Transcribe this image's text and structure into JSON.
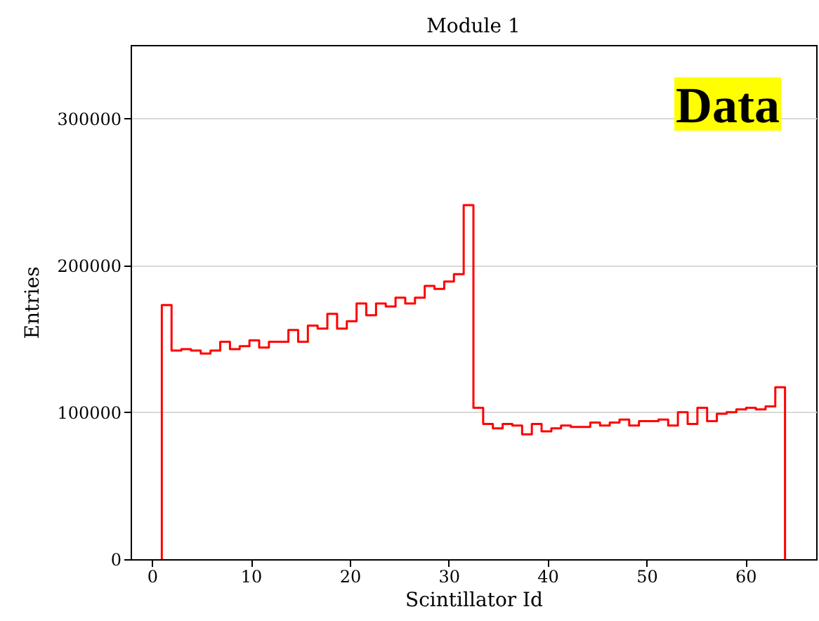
{
  "chart_data": {
    "type": "histogram",
    "title": "Module  1",
    "xlabel": "Scintillator Id",
    "ylabel": "Entries",
    "annotations": [
      "Data"
    ],
    "bins": [
      1,
      1.984375,
      2.96875,
      3.953125,
      4.9375,
      5.921875,
      6.90625,
      7.890625,
      8.875,
      9.859375,
      10.84375,
      11.828125,
      12.8125,
      13.796875,
      14.78125,
      15.765625,
      16.75,
      17.734375,
      18.71875,
      19.703125,
      20.6875,
      21.671875,
      22.65625,
      23.640625,
      24.625,
      25.609375,
      26.59375,
      27.578125,
      28.5625,
      29.546875,
      30.53125,
      31.515625,
      32.5,
      33.484375,
      34.46875,
      35.453125,
      36.4375,
      37.421875,
      38.40625,
      39.390625,
      40.375,
      41.359375,
      42.34375,
      43.328125,
      44.3125,
      45.296875,
      46.28125,
      47.265625,
      48.25,
      49.234375,
      50.21875,
      51.203125,
      52.1875,
      53.171875,
      54.15625,
      55.140625,
      56.125,
      57.109375,
      58.09375,
      59.078125,
      60.0625,
      61.046875,
      62.03125,
      63.015625,
      64
    ],
    "values": [
      173000,
      142000,
      143000,
      142000,
      140000,
      142000,
      148000,
      143000,
      145000,
      149000,
      144000,
      148000,
      148000,
      156000,
      148000,
      159000,
      157000,
      167000,
      157000,
      162000,
      174000,
      166000,
      174000,
      172000,
      178000,
      174000,
      178000,
      186000,
      184000,
      189000,
      194000,
      241000,
      103000,
      92000,
      89000,
      92000,
      91000,
      85000,
      92000,
      87000,
      89000,
      91000,
      90000,
      90000,
      93000,
      91000,
      93000,
      95000,
      91000,
      94000,
      94000,
      95000,
      91000,
      100000,
      92000,
      103000,
      94000,
      99000,
      100000,
      102000,
      103000,
      102000,
      104000,
      117000
    ],
    "color": "#ff0000",
    "xlim": [
      -2.15,
      67.15
    ],
    "xticks": [
      0,
      10,
      20,
      30,
      40,
      50,
      60
    ],
    "ylim": [
      0,
      350000
    ],
    "yticks": [
      0,
      100000,
      200000,
      300000
    ],
    "grid": "y"
  }
}
